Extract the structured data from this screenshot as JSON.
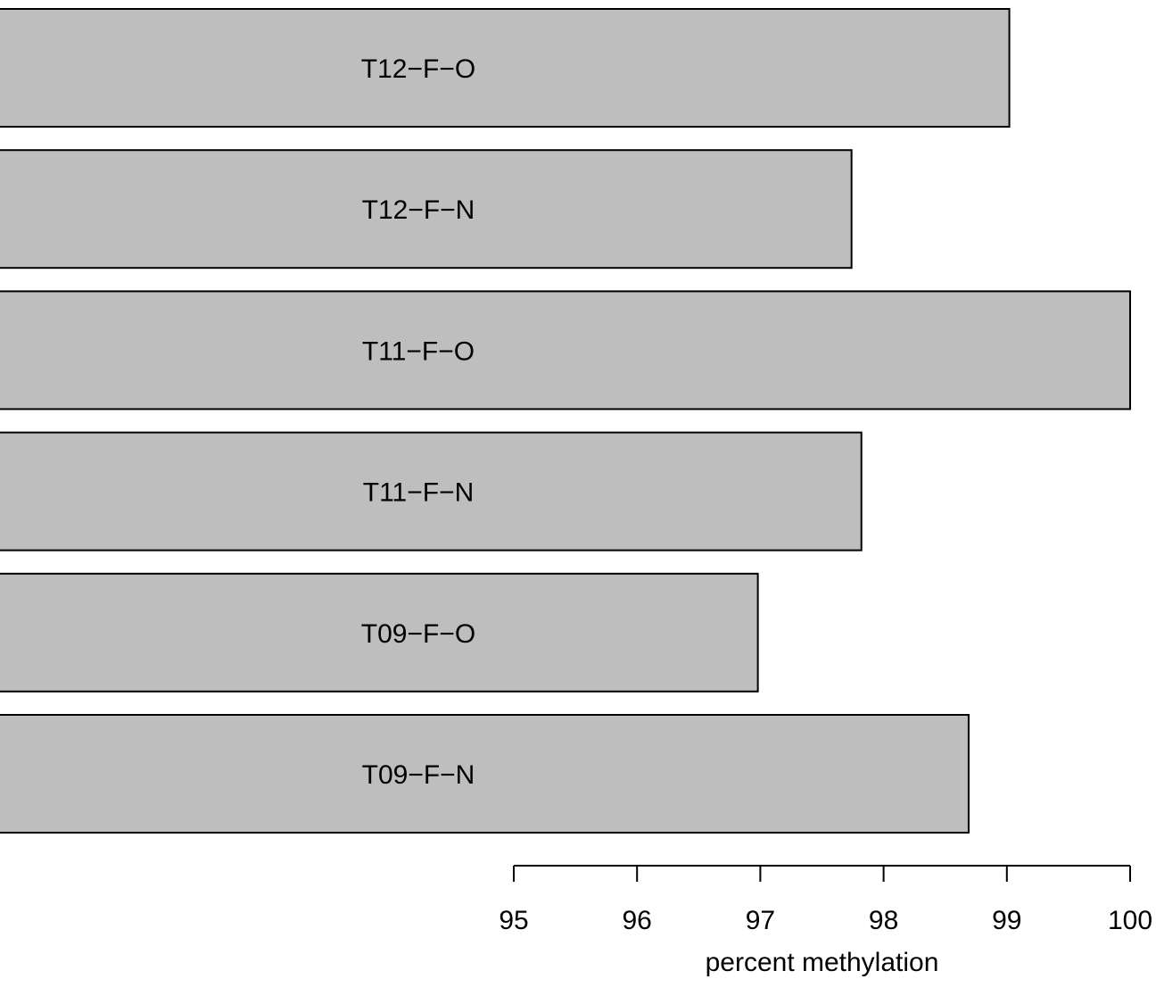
{
  "chart_data": {
    "type": "bar",
    "orientation": "horizontal",
    "categories": [
      "T12−F−O",
      "T12−F−N",
      "T11−F−O",
      "T11−F−N",
      "T09−F−O",
      "T09−F−N"
    ],
    "values": [
      99.02,
      97.74,
      100.0,
      97.82,
      96.98,
      98.69
    ],
    "bar_color": "#bebebe",
    "xlabel": "percent methylation",
    "ylabel": "",
    "title": "",
    "xlim": [
      95,
      100
    ],
    "x_ticks": [
      95,
      96,
      97,
      98,
      99,
      100
    ],
    "x_tick_labels": [
      "95",
      "96",
      "97",
      "98",
      "99",
      "100"
    ],
    "grid": false,
    "legend": false,
    "labels_inside_bars": true
  }
}
